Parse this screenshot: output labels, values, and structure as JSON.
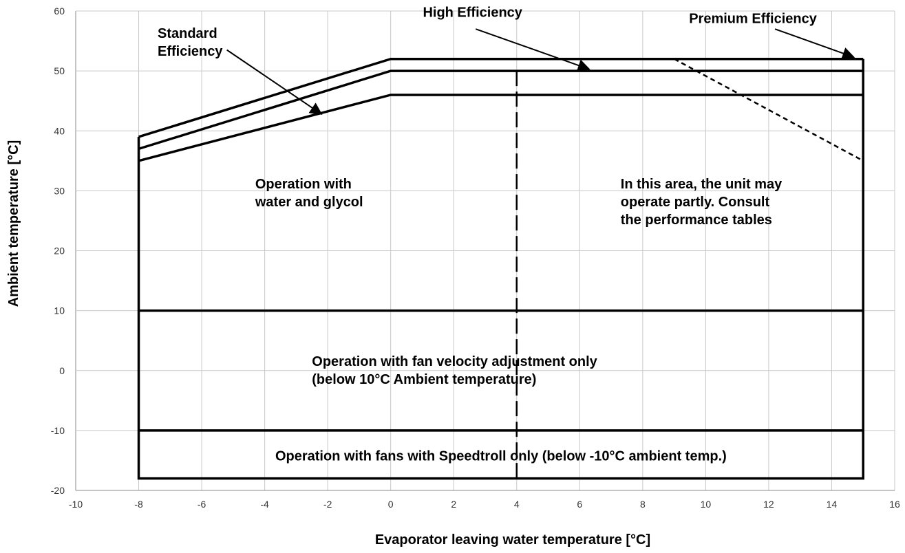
{
  "chart_data": {
    "type": "line",
    "xlabel": "Evaporator leaving water temperature [°C]",
    "ylabel": "Ambient temperature [°C]",
    "xlim": [
      -10,
      16
    ],
    "ylim": [
      -20,
      60
    ],
    "xticks": [
      "-10",
      "-8",
      "-6",
      "-4",
      "-2",
      "0",
      "2",
      "4",
      "6",
      "8",
      "10",
      "12",
      "14",
      "16"
    ],
    "yticks": [
      "-20",
      "-10",
      "0",
      "10",
      "20",
      "30",
      "40",
      "50",
      "60"
    ],
    "grid": true,
    "series": [
      {
        "name": "Premium Efficiency",
        "style": "solid",
        "x": [
          -8,
          0,
          15
        ],
        "y": [
          39,
          52,
          52
        ]
      },
      {
        "name": "High Efficiency",
        "style": "solid",
        "x": [
          -8,
          0,
          15
        ],
        "y": [
          37,
          50,
          50
        ]
      },
      {
        "name": "Standard Efficiency",
        "style": "solid",
        "x": [
          -8,
          0,
          15
        ],
        "y": [
          35,
          46,
          46
        ]
      },
      {
        "name": "",
        "style": "solid",
        "x": [
          -8,
          -8,
          15,
          15
        ],
        "y": [
          39,
          -18,
          -18,
          52
        ]
      },
      {
        "name": "",
        "style": "solid",
        "x": [
          -8,
          15
        ],
        "y": [
          10,
          10
        ]
      },
      {
        "name": "",
        "style": "solid",
        "x": [
          -8,
          15
        ],
        "y": [
          -10,
          -10
        ]
      },
      {
        "name": "",
        "style": "dashed",
        "x": [
          4,
          4
        ],
        "y": [
          50,
          -18
        ]
      },
      {
        "name": "",
        "style": "short-dashed",
        "x": [
          9,
          15
        ],
        "y": [
          52,
          35
        ]
      }
    ],
    "annotations": [
      {
        "lines": [
          "Standard",
          "Efficiency"
        ],
        "x": -7.4,
        "y": 55.5,
        "anchor": "start",
        "arrow_from": [
          -5.2,
          53.5
        ],
        "arrow_to": [
          -2.2,
          42.8
        ]
      },
      {
        "lines": [
          "High Efficiency"
        ],
        "x": 2.6,
        "y": 59,
        "anchor": "middle",
        "arrow_from": [
          2.7,
          57
        ],
        "arrow_to": [
          6.3,
          50.3
        ]
      },
      {
        "lines": [
          "Premium Efficiency"
        ],
        "x": 11.5,
        "y": 58,
        "anchor": "middle",
        "arrow_from": [
          12.2,
          57
        ],
        "arrow_to": [
          14.7,
          52.3
        ]
      },
      {
        "lines": [
          "Operation with",
          "water and glycol"
        ],
        "x": -4.3,
        "y": 30.4,
        "anchor": "start"
      },
      {
        "lines": [
          "In this area, the unit may",
          "operate partly. Consult",
          "the performance tables"
        ],
        "x": 7.3,
        "y": 30.4,
        "anchor": "start"
      },
      {
        "lines": [
          "Operation with fan velocity adjustment only",
          "(below 10°C Ambient temperature)"
        ],
        "x": -2.5,
        "y": 0.8,
        "anchor": "start"
      },
      {
        "lines": [
          "Operation with fans with Speedtroll only (below -10°C ambient temp.)"
        ],
        "x": 3.5,
        "y": -15,
        "anchor": "middle"
      }
    ]
  }
}
